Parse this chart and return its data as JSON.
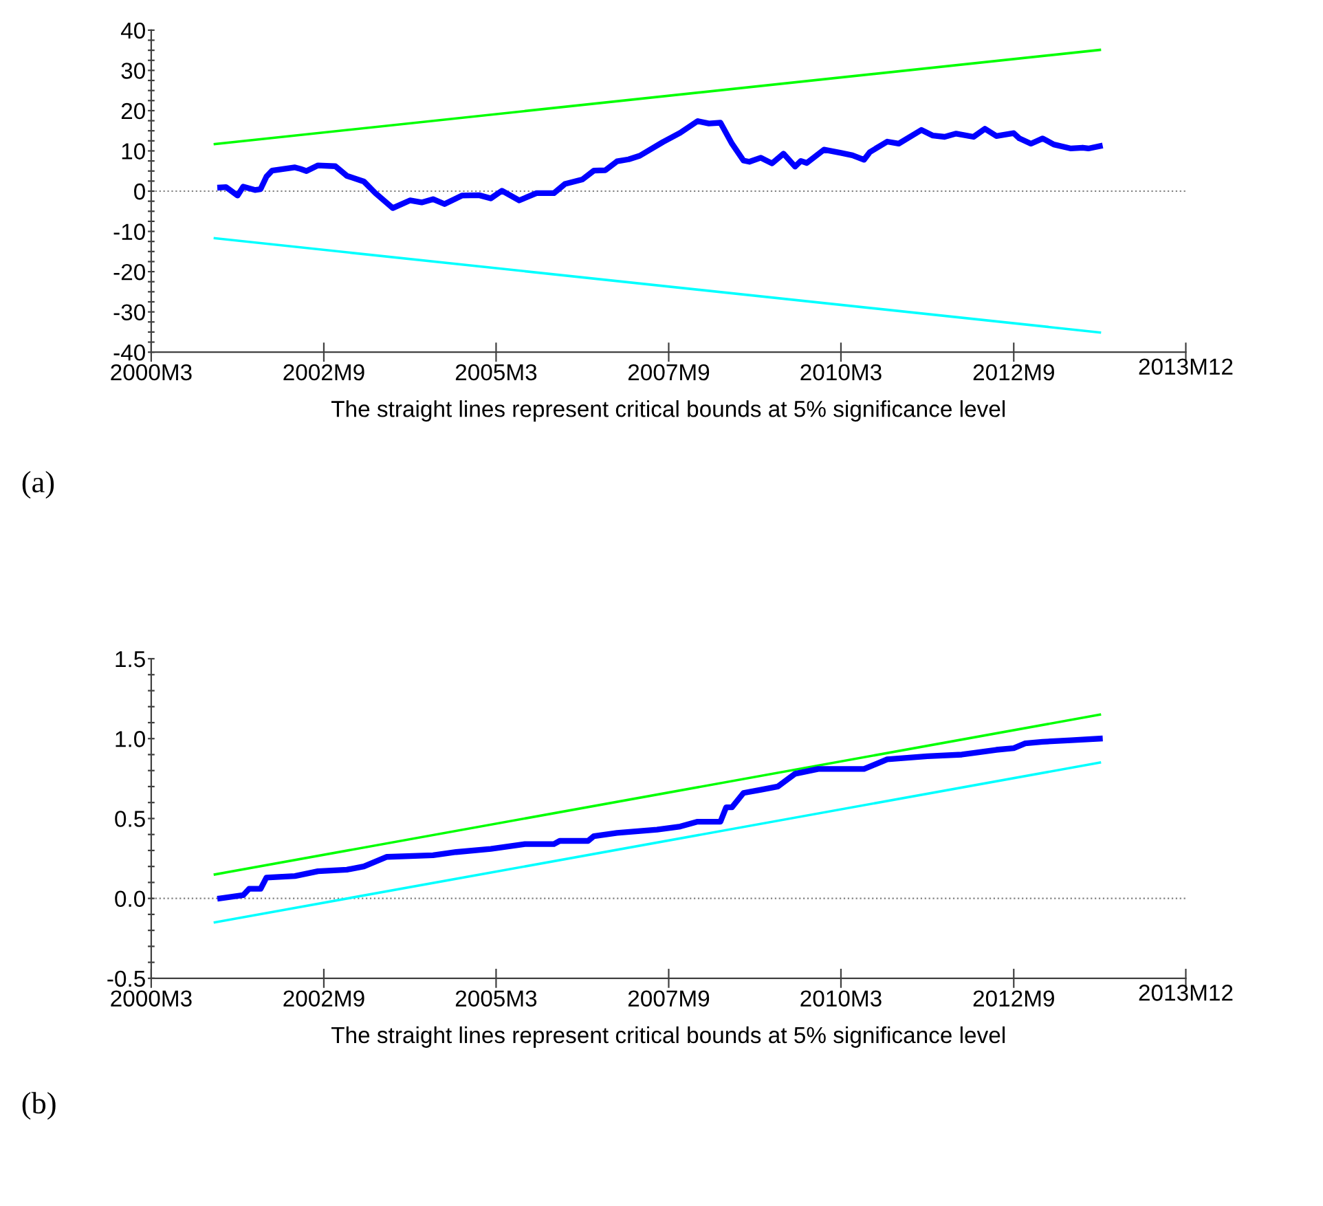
{
  "chart_data": [
    {
      "type": "line",
      "xlabel": "The straight lines represent critical bounds at 5% significance level",
      "annotations": [
        "2013M12",
        "(a)"
      ],
      "grid": false,
      "legend": false,
      "marker": "none",
      "line_style": "solid",
      "xlim": [
        "2000-03",
        "2015-03"
      ],
      "xticks": [
        {
          "value": "2000-03",
          "label": "2000M3"
        },
        {
          "value": "2002-09",
          "label": "2002M9"
        },
        {
          "value": "2005-03",
          "label": "2005M3"
        },
        {
          "value": "2007-09",
          "label": "2007M9"
        },
        {
          "value": "2010-03",
          "label": "2010M3"
        },
        {
          "value": "2012-09",
          "label": "2012M9"
        },
        {
          "value": "2015-03",
          "label": null
        }
      ],
      "ylim": [
        -40,
        40
      ],
      "yticks": [
        -40,
        {
          "value": -37.5,
          "label": null
        },
        {
          "value": -35,
          "label": null
        },
        {
          "value": -32.5,
          "label": null
        },
        -30,
        {
          "value": -27.5,
          "label": null
        },
        {
          "value": -25,
          "label": null
        },
        {
          "value": -22.5,
          "label": null
        },
        -20,
        {
          "value": -17.5,
          "label": null
        },
        {
          "value": -15,
          "label": null
        },
        {
          "value": -12.5,
          "label": null
        },
        -10,
        {
          "value": -7.5,
          "label": null
        },
        {
          "value": -5,
          "label": null
        },
        {
          "value": -2.5,
          "label": null
        },
        0,
        {
          "value": 2.5,
          "label": null
        },
        {
          "value": 5,
          "label": null
        },
        {
          "value": 7.5,
          "label": null
        },
        10,
        {
          "value": 12.5,
          "label": null
        },
        {
          "value": 15,
          "label": null
        },
        {
          "value": 17.5,
          "label": null
        },
        20,
        {
          "value": 22.5,
          "label": null
        },
        {
          "value": 25,
          "label": null
        },
        {
          "value": 27.5,
          "label": null
        },
        30,
        {
          "value": 32.5,
          "label": null
        },
        {
          "value": 35,
          "label": null
        },
        {
          "value": 37.5,
          "label": null
        },
        40
      ],
      "ref_lines": [
        {
          "axis": "y",
          "value": 0,
          "color": "#808080",
          "line_style": "dotted"
        }
      ],
      "series": [
        {
          "color": "#00ff00",
          "x": [
            "2001-02",
            "2013-12"
          ],
          "values": [
            11.7,
            35.1
          ]
        },
        {
          "color": "#00ffff",
          "x": [
            "2001-02",
            "2013-12"
          ],
          "values": [
            -11.7,
            -35.1
          ]
        },
        {
          "color": "#0000ff",
          "x": [
            "2001-03",
            "2001-04",
            "2001-06",
            "2001-07",
            "2001-09",
            "2001-10",
            "2001-11",
            "2001-12",
            "2002-04",
            "2002-05",
            "2002-06",
            "2002-08",
            "2002-11",
            "2003-01",
            "2003-04",
            "2003-06",
            "2003-09",
            "2003-12",
            "2004-02",
            "2004-04",
            "2004-06",
            "2004-09",
            "2004-12",
            "2005-02",
            "2005-04",
            "2005-07",
            "2005-10",
            "2006-01",
            "2006-03",
            "2006-06",
            "2006-08",
            "2006-10",
            "2006-12",
            "2007-02",
            "2007-04",
            "2007-08",
            "2007-11",
            "2008-02",
            "2008-04",
            "2008-06",
            "2008-08",
            "2008-10",
            "2008-11",
            "2009-01",
            "2009-03",
            "2009-05",
            "2009-07",
            "2009-08",
            "2009-09",
            "2009-12",
            "2010-03",
            "2010-05",
            "2010-07",
            "2010-08",
            "2010-11",
            "2011-01",
            "2011-05",
            "2011-07",
            "2011-09",
            "2011-11",
            "2012-02",
            "2012-04",
            "2012-06",
            "2012-09",
            "2012-10",
            "2012-12",
            "2013-02",
            "2013-04",
            "2013-07",
            "2013-09",
            "2013-10",
            "2013-12"
          ],
          "values": [
            0.9,
            1.0,
            -1.1,
            1.1,
            0.3,
            0.5,
            3.6,
            5.1,
            5.9,
            5.5,
            5.0,
            6.4,
            6.2,
            3.8,
            2.4,
            -0.5,
            -4.2,
            -2.3,
            -2.8,
            -2.0,
            -3.2,
            -1.1,
            -1.0,
            -1.8,
            0.1,
            -2.3,
            -0.5,
            -0.5,
            1.8,
            2.9,
            5.1,
            5.2,
            7.4,
            7.9,
            8.8,
            12.2,
            14.5,
            17.4,
            16.8,
            17.0,
            11.8,
            7.6,
            7.3,
            8.3,
            6.9,
            9.3,
            6.1,
            7.5,
            7.0,
            10.3,
            9.5,
            8.9,
            7.8,
            9.7,
            12.3,
            11.8,
            15.2,
            13.8,
            13.5,
            14.3,
            13.5,
            15.5,
            13.7,
            14.4,
            13.1,
            11.8,
            13.1,
            11.6,
            10.6,
            10.8,
            10.6,
            11.2
          ]
        }
      ]
    },
    {
      "type": "line",
      "xlabel": "The straight lines represent critical bounds at 5% significance level",
      "annotations": [
        "2013M12",
        "(b)"
      ],
      "grid": false,
      "legend": false,
      "marker": "none",
      "line_style": "solid",
      "xlim": [
        "2000-03",
        "2015-03"
      ],
      "xticks": [
        {
          "value": "2000-03",
          "label": "2000M3"
        },
        {
          "value": "2002-09",
          "label": "2002M9"
        },
        {
          "value": "2005-03",
          "label": "2005M3"
        },
        {
          "value": "2007-09",
          "label": "2007M9"
        },
        {
          "value": "2010-03",
          "label": "2010M3"
        },
        {
          "value": "2012-09",
          "label": "2012M9"
        },
        {
          "value": "2015-03",
          "label": null
        }
      ],
      "ylim": [
        -0.5,
        1.5
      ],
      "yticks": [
        {
          "value": -0.5,
          "label": "-0.5"
        },
        {
          "value": -0.4,
          "label": null
        },
        {
          "value": -0.3,
          "label": null
        },
        {
          "value": -0.2,
          "label": null
        },
        {
          "value": -0.1,
          "label": null
        },
        {
          "value": 0,
          "label": "0.0"
        },
        {
          "value": 0.1,
          "label": null
        },
        {
          "value": 0.2,
          "label": null
        },
        {
          "value": 0.3,
          "label": null
        },
        {
          "value": 0.4,
          "label": null
        },
        {
          "value": 0.5,
          "label": "0.5"
        },
        {
          "value": 0.6,
          "label": null
        },
        {
          "value": 0.7,
          "label": null
        },
        {
          "value": 0.8,
          "label": null
        },
        {
          "value": 0.9,
          "label": null
        },
        {
          "value": 1,
          "label": "1.0"
        },
        {
          "value": 1.1,
          "label": null
        },
        {
          "value": 1.2,
          "label": null
        },
        {
          "value": 1.3,
          "label": null
        },
        {
          "value": 1.4,
          "label": null
        },
        {
          "value": 1.5,
          "label": "1.5"
        }
      ],
      "ref_lines": [
        {
          "axis": "y",
          "value": 0,
          "color": "#808080",
          "line_style": "dotted"
        }
      ],
      "series": [
        {
          "color": "#00ff00",
          "x": [
            "2001-02",
            "2013-12"
          ],
          "values": [
            0.15,
            1.15
          ]
        },
        {
          "color": "#00ffff",
          "x": [
            "2001-02",
            "2013-12"
          ],
          "values": [
            -0.15,
            0.85
          ]
        },
        {
          "color": "#0000ff",
          "x": [
            "2001-03",
            "2001-07",
            "2001-08",
            "2001-10",
            "2001-11",
            "2002-04",
            "2002-08",
            "2003-01",
            "2003-04",
            "2003-06",
            "2003-08",
            "2004-04",
            "2004-08",
            "2005-02",
            "2005-08",
            "2006-01",
            "2006-02",
            "2006-07",
            "2006-08",
            "2006-12",
            "2007-07",
            "2007-11",
            "2008-02",
            "2008-06",
            "2008-07",
            "2008-08",
            "2008-10",
            "2009-01",
            "2009-04",
            "2009-07",
            "2009-11",
            "2010-07",
            "2010-09",
            "2010-11",
            "2011-06",
            "2011-12",
            "2012-02",
            "2012-06",
            "2012-09",
            "2012-11",
            "2013-02",
            "2013-07",
            "2013-12"
          ],
          "values": [
            0,
            0.02,
            0.06,
            0.06,
            0.13,
            0.14,
            0.17,
            0.18,
            0.2,
            0.23,
            0.26,
            0.27,
            0.29,
            0.31,
            0.34,
            0.34,
            0.36,
            0.36,
            0.39,
            0.41,
            0.43,
            0.45,
            0.48,
            0.48,
            0.57,
            0.57,
            0.66,
            0.68,
            0.7,
            0.78,
            0.81,
            0.81,
            0.84,
            0.87,
            0.89,
            0.9,
            0.91,
            0.93,
            0.94,
            0.97,
            0.98,
            0.99,
            1.0
          ]
        }
      ]
    }
  ]
}
